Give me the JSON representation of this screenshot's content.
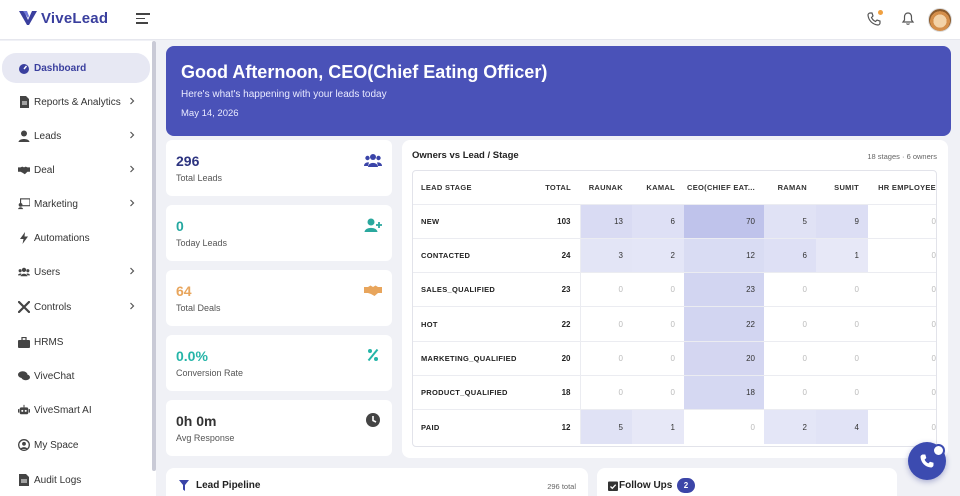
{
  "app": {
    "logo_text": "ViveLead",
    "brand_color": "#3a3f9e",
    "icons": {
      "menu": "hamburger-icon",
      "phone": "phone-icon",
      "bell": "bell-icon",
      "avatar": "user-avatar"
    }
  },
  "sidebar": {
    "items": [
      {
        "label": "Dashboard",
        "icon": "dashboard-icon",
        "active": true,
        "has_children": false
      },
      {
        "label": "Reports & Analytics",
        "icon": "report-icon",
        "active": false,
        "has_children": true
      },
      {
        "label": "Leads",
        "icon": "user-icon",
        "active": false,
        "has_children": true
      },
      {
        "label": "Deal",
        "icon": "handshake-icon",
        "active": false,
        "has_children": true
      },
      {
        "label": "Marketing",
        "icon": "marketing-icon",
        "active": false,
        "has_children": true
      },
      {
        "label": "Automations",
        "icon": "bolt-icon",
        "active": false,
        "has_children": false
      },
      {
        "label": "Users",
        "icon": "users-icon",
        "active": false,
        "has_children": true
      },
      {
        "label": "Controls",
        "icon": "tools-icon",
        "active": false,
        "has_children": true
      },
      {
        "label": "HRMS",
        "icon": "briefcase-icon",
        "active": false,
        "has_children": false
      },
      {
        "label": "ViveChat",
        "icon": "chat-icon",
        "active": false,
        "has_children": false
      },
      {
        "label": "ViveSmart AI",
        "icon": "robot-icon",
        "active": false,
        "has_children": false
      },
      {
        "label": "My Space",
        "icon": "user-circle-icon",
        "active": false,
        "has_children": false
      },
      {
        "label": "Audit Logs",
        "icon": "document-icon",
        "active": false,
        "has_children": false
      }
    ]
  },
  "hero": {
    "title": "Good Afternoon, CEO(Chief Eating Officer)",
    "subtitle": "Here's what's happening with your leads today",
    "date": "May 14, 2026",
    "bg_color": "#4a52b8"
  },
  "stats": [
    {
      "value": "296",
      "label": "Total Leads",
      "color": "#2d3480",
      "icon": "users-icon"
    },
    {
      "value": "0",
      "label": "Today Leads",
      "color": "#25a8a0",
      "icon": "user-plus-icon"
    },
    {
      "value": "64",
      "label": "Total Deals",
      "color": "#e8a55c",
      "icon": "handshake-icon"
    },
    {
      "value": "0.0%",
      "label": "Conversion Rate",
      "color": "#25b5a8",
      "icon": "percent-icon"
    },
    {
      "value": "0h 0m",
      "label": "Avg Response",
      "color": "#333333",
      "icon": "clock-icon"
    }
  ],
  "matrix": {
    "title": "Owners vs Lead / Stage",
    "meta": "18 stages · 6 owners",
    "columns": [
      "LEAD STAGE",
      "TOTAL",
      "RAUNAK",
      "KAMAL",
      "CEO(CHIEF EAT...",
      "RAMAN",
      "SUMIT",
      "HR EMPLOYEE"
    ],
    "rows": [
      {
        "stage": "NEW",
        "total": "103",
        "cells": [
          "13",
          "6",
          "70",
          "5",
          "9",
          "0"
        ]
      },
      {
        "stage": "CONTACTED",
        "total": "24",
        "cells": [
          "3",
          "2",
          "12",
          "6",
          "1",
          "0"
        ]
      },
      {
        "stage": "SALES_QUALIFIED",
        "total": "23",
        "cells": [
          "0",
          "0",
          "23",
          "0",
          "0",
          "0"
        ]
      },
      {
        "stage": "HOT",
        "total": "22",
        "cells": [
          "0",
          "0",
          "22",
          "0",
          "0",
          "0"
        ]
      },
      {
        "stage": "MARKETING_QUALIFIED",
        "total": "20",
        "cells": [
          "0",
          "0",
          "20",
          "0",
          "0",
          "0"
        ]
      },
      {
        "stage": "PRODUCT_QUALIFIED",
        "total": "18",
        "cells": [
          "0",
          "0",
          "18",
          "0",
          "0",
          "0"
        ]
      },
      {
        "stage": "PAID",
        "total": "12",
        "cells": [
          "5",
          "1",
          "0",
          "2",
          "4",
          "0"
        ]
      }
    ]
  },
  "pipeline": {
    "title": "Lead Pipeline",
    "total": "296 total",
    "icon": "filter-icon"
  },
  "followups": {
    "title": "Follow Ups",
    "count": "2",
    "icon": "calendar-check-icon"
  },
  "fab": {
    "icon": "phone-icon",
    "color": "#3c4bb0"
  }
}
